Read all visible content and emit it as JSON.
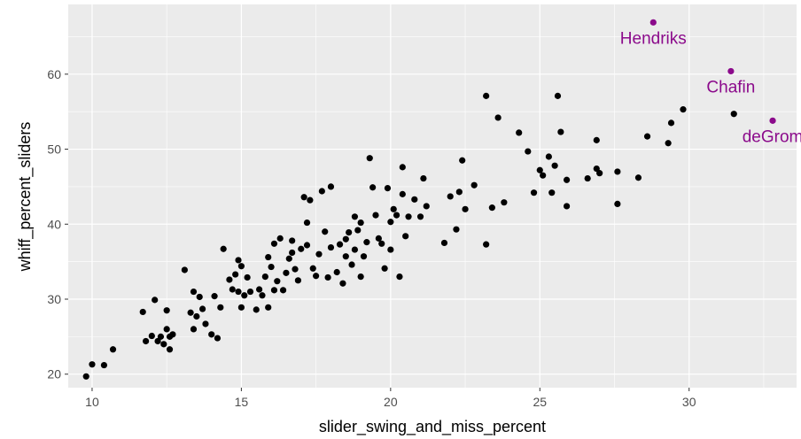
{
  "chart_data": {
    "type": "scatter",
    "title": "",
    "xlabel": "slider_swing_and_miss_percent",
    "ylabel": "whiff_percent_sliders",
    "xlim": [
      9.2,
      33.6
    ],
    "ylim": [
      18.2,
      69.3
    ],
    "x_ticks": [
      10,
      15,
      20,
      25,
      30
    ],
    "y_ticks": [
      20,
      30,
      40,
      50,
      60
    ],
    "grid": true,
    "legend": "none",
    "colors": {
      "panel": "#ebebeb",
      "grid": "#ffffff",
      "point": "#000000",
      "highlight": "#8b0a8b"
    },
    "highlighted": [
      {
        "label": "Hendriks",
        "x": 28.8,
        "y": 66.9
      },
      {
        "label": "Chafin",
        "x": 31.4,
        "y": 60.4
      },
      {
        "label": "deGrom",
        "x": 32.8,
        "y": 53.8
      }
    ],
    "points": [
      [
        9.8,
        19.7
      ],
      [
        10.0,
        21.3
      ],
      [
        10.4,
        21.2
      ],
      [
        10.7,
        23.3
      ],
      [
        11.7,
        28.3
      ],
      [
        11.8,
        24.4
      ],
      [
        12.0,
        25.1
      ],
      [
        12.1,
        29.9
      ],
      [
        12.2,
        24.4
      ],
      [
        12.3,
        25.0
      ],
      [
        12.4,
        24.0
      ],
      [
        12.5,
        26.0
      ],
      [
        12.5,
        28.5
      ],
      [
        12.6,
        23.3
      ],
      [
        12.6,
        25.0
      ],
      [
        12.7,
        25.3
      ],
      [
        13.1,
        33.9
      ],
      [
        13.3,
        28.2
      ],
      [
        13.4,
        26.0
      ],
      [
        13.4,
        31.0
      ],
      [
        13.5,
        27.7
      ],
      [
        13.6,
        30.3
      ],
      [
        13.7,
        28.7
      ],
      [
        13.8,
        26.7
      ],
      [
        14.0,
        25.3
      ],
      [
        14.1,
        30.4
      ],
      [
        14.2,
        24.8
      ],
      [
        14.3,
        28.9
      ],
      [
        14.4,
        36.7
      ],
      [
        14.6,
        32.6
      ],
      [
        14.7,
        31.3
      ],
      [
        14.8,
        33.3
      ],
      [
        14.9,
        35.2
      ],
      [
        14.9,
        31.0
      ],
      [
        15.0,
        34.4
      ],
      [
        15.0,
        28.9
      ],
      [
        15.1,
        30.5
      ],
      [
        15.2,
        32.9
      ],
      [
        15.3,
        31.0
      ],
      [
        15.5,
        28.6
      ],
      [
        15.6,
        31.3
      ],
      [
        15.7,
        30.5
      ],
      [
        15.8,
        33.0
      ],
      [
        15.9,
        28.9
      ],
      [
        15.9,
        35.6
      ],
      [
        16.0,
        34.3
      ],
      [
        16.1,
        31.2
      ],
      [
        16.1,
        37.4
      ],
      [
        16.2,
        32.4
      ],
      [
        16.3,
        38.1
      ],
      [
        16.4,
        31.2
      ],
      [
        16.5,
        33.5
      ],
      [
        16.6,
        35.4
      ],
      [
        16.7,
        37.8
      ],
      [
        16.7,
        36.2
      ],
      [
        16.8,
        34.0
      ],
      [
        16.9,
        32.5
      ],
      [
        17.0,
        36.7
      ],
      [
        17.1,
        43.6
      ],
      [
        17.2,
        40.2
      ],
      [
        17.2,
        37.2
      ],
      [
        17.3,
        43.2
      ],
      [
        17.4,
        34.1
      ],
      [
        17.5,
        33.1
      ],
      [
        17.6,
        36.0
      ],
      [
        17.7,
        44.4
      ],
      [
        17.8,
        39.0
      ],
      [
        17.9,
        32.9
      ],
      [
        18.0,
        36.9
      ],
      [
        18.0,
        45.0
      ],
      [
        18.2,
        33.6
      ],
      [
        18.3,
        37.3
      ],
      [
        18.4,
        32.1
      ],
      [
        18.5,
        38.0
      ],
      [
        18.5,
        35.7
      ],
      [
        18.6,
        38.9
      ],
      [
        18.7,
        34.6
      ],
      [
        18.8,
        41.0
      ],
      [
        18.8,
        36.6
      ],
      [
        18.9,
        39.2
      ],
      [
        19.0,
        40.2
      ],
      [
        19.0,
        33.0
      ],
      [
        19.1,
        35.7
      ],
      [
        19.2,
        37.6
      ],
      [
        19.3,
        48.8
      ],
      [
        19.4,
        44.9
      ],
      [
        19.5,
        41.2
      ],
      [
        19.6,
        38.1
      ],
      [
        19.7,
        37.4
      ],
      [
        19.8,
        34.1
      ],
      [
        19.9,
        44.8
      ],
      [
        20.0,
        40.3
      ],
      [
        20.0,
        36.6
      ],
      [
        20.1,
        42.0
      ],
      [
        20.2,
        41.2
      ],
      [
        20.3,
        33.0
      ],
      [
        20.4,
        44.0
      ],
      [
        20.4,
        47.6
      ],
      [
        20.5,
        38.4
      ],
      [
        20.6,
        41.0
      ],
      [
        20.8,
        43.3
      ],
      [
        21.0,
        41.0
      ],
      [
        21.1,
        46.1
      ],
      [
        21.2,
        42.4
      ],
      [
        21.8,
        37.5
      ],
      [
        22.0,
        43.7
      ],
      [
        22.2,
        39.3
      ],
      [
        22.3,
        44.3
      ],
      [
        22.4,
        48.5
      ],
      [
        22.5,
        42.0
      ],
      [
        22.8,
        45.2
      ],
      [
        23.2,
        57.1
      ],
      [
        23.2,
        37.3
      ],
      [
        23.4,
        42.2
      ],
      [
        23.6,
        54.2
      ],
      [
        23.8,
        42.9
      ],
      [
        24.3,
        52.2
      ],
      [
        24.6,
        49.7
      ],
      [
        24.8,
        44.2
      ],
      [
        25.0,
        47.2
      ],
      [
        25.1,
        46.5
      ],
      [
        25.3,
        49.0
      ],
      [
        25.4,
        44.2
      ],
      [
        25.5,
        47.8
      ],
      [
        25.6,
        57.1
      ],
      [
        25.7,
        52.3
      ],
      [
        25.9,
        45.9
      ],
      [
        25.9,
        42.4
      ],
      [
        26.6,
        46.1
      ],
      [
        26.9,
        51.2
      ],
      [
        26.9,
        47.4
      ],
      [
        27.0,
        46.8
      ],
      [
        27.6,
        47.0
      ],
      [
        27.6,
        42.7
      ],
      [
        28.3,
        46.2
      ],
      [
        28.6,
        51.7
      ],
      [
        29.3,
        50.8
      ],
      [
        29.4,
        53.5
      ],
      [
        29.8,
        55.3
      ],
      [
        31.5,
        54.7
      ]
    ]
  }
}
